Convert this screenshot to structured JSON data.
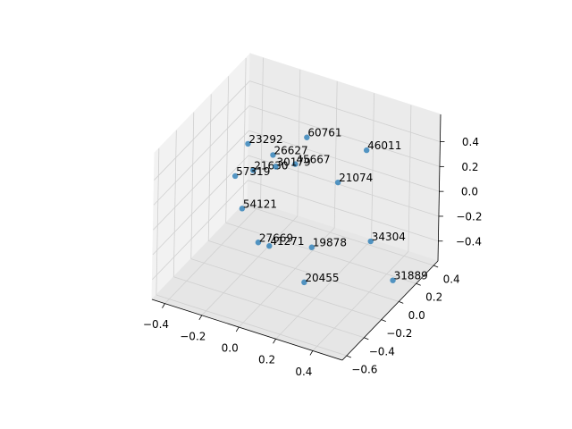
{
  "chart_data": {
    "type": "scatter3d",
    "color": "#1f77b4",
    "x": [
      0.04,
      0.28,
      -0.29,
      -0.2,
      -0.13,
      -0.25,
      -0.23,
      -0.36,
      0.12,
      -0.26,
      -0.17,
      -0.11,
      0.1,
      0.32,
      0.15,
      0.48
    ],
    "y": [
      0.02,
      0.2,
      0.05,
      0.15,
      0.26,
      0.03,
      0.25,
      0.06,
      0.22,
      -0.07,
      -0.07,
      -0.07,
      -0.03,
      0.18,
      -0.22,
      0.1
    ],
    "z": [
      0.5,
      0.38,
      0.27,
      0.15,
      0.03,
      0.09,
      -0.03,
      -0.03,
      0.03,
      -0.15,
      -0.38,
      -0.38,
      -0.32,
      -0.32,
      -0.44,
      -0.5
    ],
    "labels": [
      "60761",
      "46011",
      "23292",
      "26627",
      "45667",
      "21630",
      "30179",
      "57319",
      "21074",
      "54121",
      "27669",
      "41271",
      "19878",
      "34304",
      "20455",
      "31889"
    ],
    "xlim": [
      -0.47,
      0.56
    ],
    "ylim": [
      -0.65,
      0.45
    ],
    "zlim": [
      -0.56,
      0.62
    ],
    "xticks": [
      {
        "value": -0.4,
        "label": "−0.4"
      },
      {
        "value": -0.2,
        "label": "−0.2"
      },
      {
        "value": 0,
        "label": "0.0"
      },
      0.2,
      0.4
    ],
    "yticks": [
      {
        "value": -0.6,
        "label": "−0.6"
      },
      {
        "value": -0.4,
        "label": "−0.4"
      },
      {
        "value": -0.2,
        "label": "−0.2"
      },
      {
        "value": 0,
        "label": "0.0"
      },
      0.2,
      0.4
    ],
    "zticks": [
      {
        "value": -0.4,
        "label": "−0.4"
      },
      {
        "value": -0.2,
        "label": "−0.2"
      },
      {
        "value": 0,
        "label": "0.0"
      },
      0.2,
      0.4
    ],
    "grid": true
  }
}
